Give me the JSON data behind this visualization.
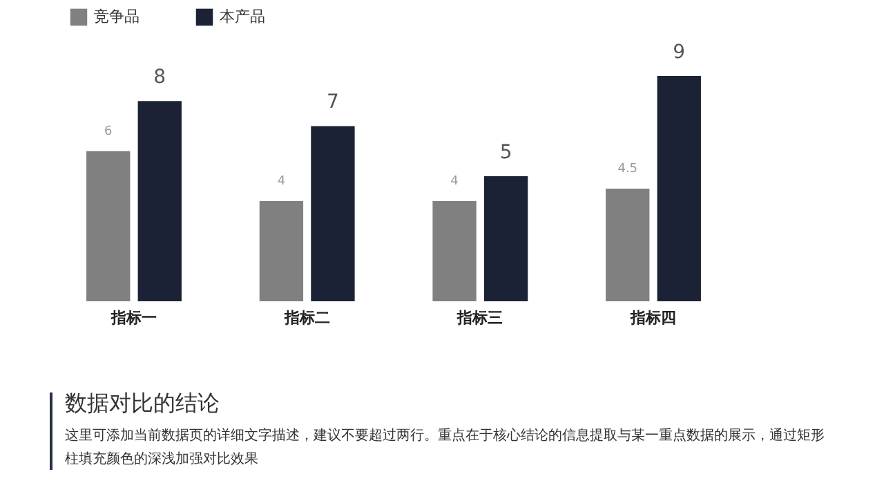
{
  "chart_data": {
    "type": "bar",
    "categories": [
      "指标一",
      "指标二",
      "指标三",
      "指标四"
    ],
    "series": [
      {
        "name": "竞争品",
        "color": "#808080",
        "values": [
          6,
          4,
          4,
          4.5
        ]
      },
      {
        "name": "本产品",
        "color": "#1c2236",
        "values": [
          8,
          7,
          5,
          9
        ]
      }
    ],
    "data_labels": true,
    "legend": "top left",
    "annotations": [
      "数据对比的结论",
      "这里可添加当前数据页的详细文字描述，建议不要超过两行。重点在于核心结论的信息提取与某一重点数据的展示，通过矩形柱填充颜色的深浅加强对比效果"
    ]
  }
}
